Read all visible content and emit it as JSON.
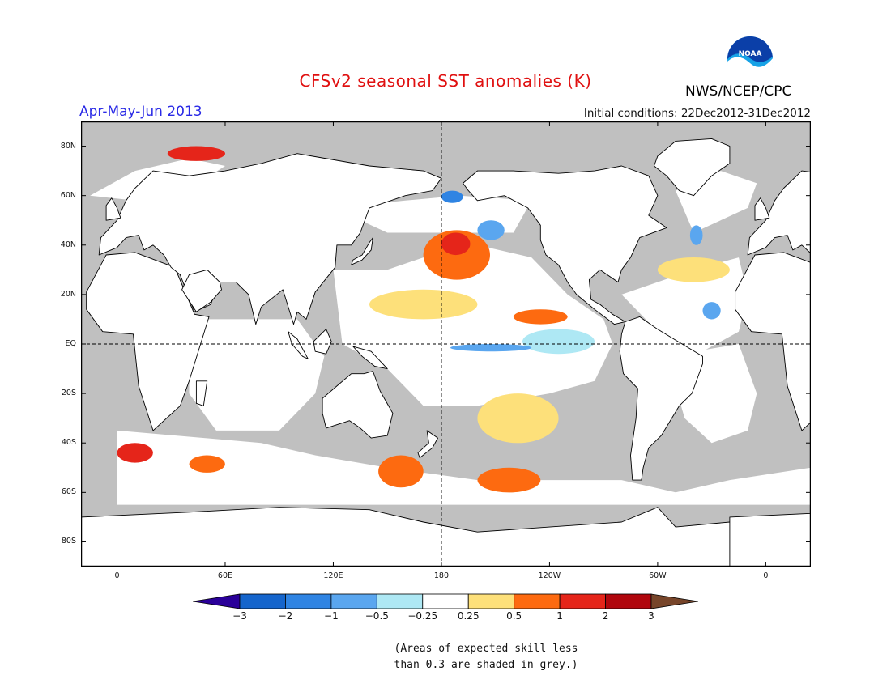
{
  "header": {
    "title": "CFSv2 seasonal SST anomalies (K)",
    "season": "Apr-May-Jun 2013",
    "initial_conditions": "Initial conditions: 22Dec2012-31Dec2012",
    "agency": "NWS/NCEP/CPC",
    "logo_text": "NOAA"
  },
  "map": {
    "projection": "equirectangular",
    "lon_range": [
      -20,
      385
    ],
    "lat_range": [
      -90,
      90
    ],
    "lat_ticks": [
      {
        "lat": 80,
        "label": "80N"
      },
      {
        "lat": 60,
        "label": "60N"
      },
      {
        "lat": 40,
        "label": "40N"
      },
      {
        "lat": 20,
        "label": "20N"
      },
      {
        "lat": 0,
        "label": "EQ"
      },
      {
        "lat": -20,
        "label": "20S"
      },
      {
        "lat": -40,
        "label": "40S"
      },
      {
        "lat": -60,
        "label": "60S"
      },
      {
        "lat": -80,
        "label": "80S"
      }
    ],
    "lon_ticks": [
      {
        "lon": 0,
        "label": "0"
      },
      {
        "lon": 60,
        "label": "60E"
      },
      {
        "lon": 120,
        "label": "120E"
      },
      {
        "lon": 180,
        "label": "180"
      },
      {
        "lon": 240,
        "label": "120W"
      },
      {
        "lon": 300,
        "label": "60W"
      },
      {
        "lon": 360,
        "label": "0"
      }
    ],
    "reference_lines": {
      "equator": true,
      "dateline": true
    },
    "colors": {
      "land": "#ffffff",
      "low_skill_grey": "#c0c0c0",
      "coast": "#000000"
    }
  },
  "colorbar": {
    "levels": [
      "-3",
      "-2",
      "-1",
      "-0.5",
      "-0.25",
      "0.25",
      "0.5",
      "1",
      "2",
      "3"
    ],
    "colors": [
      "#2a0099",
      "#1565cc",
      "#2f84e3",
      "#5aa6ef",
      "#aee8f4",
      "#ffffff",
      "#fde07a",
      "#fd6a10",
      "#e5251a",
      "#b0060d",
      "#77452a"
    ]
  },
  "note": {
    "line1": "(Areas of expected skill less",
    "line2": "than 0.3 are shaded in grey.)"
  },
  "anomaly_regions": [
    {
      "name": "north-pacific-warm",
      "category": "1",
      "color": "#fd6a10",
      "lon_min": 170,
      "lon_max": 207,
      "lat_min": 26,
      "lat_max": 46
    },
    {
      "name": "north-pacific-warm-core",
      "category": "2",
      "color": "#e5251a",
      "lon_min": 180,
      "lon_max": 196,
      "lat_min": 36,
      "lat_max": 45
    },
    {
      "name": "north-pacific-cool",
      "category": "-0.5",
      "color": "#5aa6ef",
      "lon_min": 200,
      "lon_max": 215,
      "lat_min": 42,
      "lat_max": 50
    },
    {
      "name": "bering-cool",
      "category": "-1",
      "color": "#2f84e3",
      "lon_min": 180,
      "lon_max": 192,
      "lat_min": 57,
      "lat_max": 62
    },
    {
      "name": "west-pacific-band",
      "category": "0.25",
      "color": "#fde07a",
      "lon_min": 140,
      "lon_max": 200,
      "lat_min": 10,
      "lat_max": 22
    },
    {
      "name": "ne-tropical-pacific-warm",
      "category": "1",
      "color": "#fd6a10",
      "lon_min": 220,
      "lon_max": 250,
      "lat_min": 8,
      "lat_max": 14
    },
    {
      "name": "equatorial-east-pacific-cool",
      "category": "-0.25",
      "color": "#aee8f4",
      "lon_min": 225,
      "lon_max": 265,
      "lat_min": -4,
      "lat_max": 6
    },
    {
      "name": "equatorial-cool-line",
      "category": "-0.5",
      "color": "#5aa6ef",
      "lon_min": 185,
      "lon_max": 230,
      "lat_min": -3,
      "lat_max": 0
    },
    {
      "name": "south-pacific-warm",
      "category": "0.5",
      "color": "#fde07a",
      "lon_min": 200,
      "lon_max": 245,
      "lat_min": -40,
      "lat_max": -20
    },
    {
      "name": "south-pacific-warm-core",
      "category": "1",
      "color": "#fd6a10",
      "lon_min": 200,
      "lon_max": 235,
      "lat_min": -60,
      "lat_max": -50
    },
    {
      "name": "south-of-tasman-warm",
      "category": "1",
      "color": "#fd6a10",
      "lon_min": 145,
      "lon_max": 170,
      "lat_min": -58,
      "lat_max": -45
    },
    {
      "name": "south-atlantic-warm",
      "category": "2",
      "color": "#e5251a",
      "lon_min": 0,
      "lon_max": 20,
      "lat_min": -48,
      "lat_max": -40
    },
    {
      "name": "south-indian-warm",
      "category": "1",
      "color": "#fd6a10",
      "lon_min": 40,
      "lon_max": 60,
      "lat_min": -52,
      "lat_max": -45
    },
    {
      "name": "arctic-warm",
      "category": "2",
      "color": "#e5251a",
      "lon_min": 28,
      "lon_max": 60,
      "lat_min": 74,
      "lat_max": 80
    },
    {
      "name": "north-atlantic-warm",
      "category": "0.5",
      "color": "#fde07a",
      "lon_min": 300,
      "lon_max": 340,
      "lat_min": 25,
      "lat_max": 35
    },
    {
      "name": "north-atlantic-cool",
      "category": "-0.5",
      "color": "#5aa6ef",
      "lon_min": 318,
      "lon_max": 325,
      "lat_min": 40,
      "lat_max": 48
    },
    {
      "name": "tropical-atlantic-cool",
      "category": "-0.5",
      "color": "#5aa6ef",
      "lon_min": 325,
      "lon_max": 335,
      "lat_min": 10,
      "lat_max": 17
    }
  ]
}
